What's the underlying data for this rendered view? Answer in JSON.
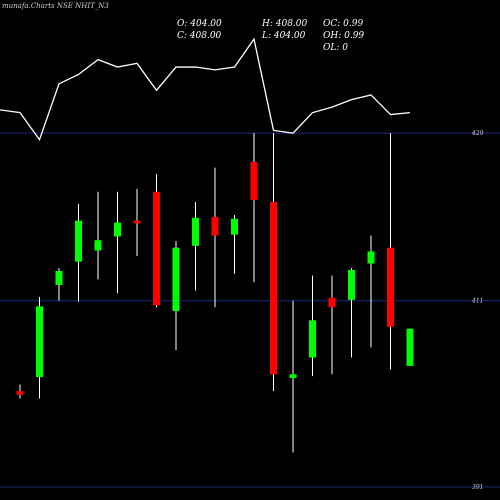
{
  "watermark": "munafa.Charts NSE NHIT_N3",
  "ohlc_info": {
    "open": "O: 404.00",
    "high": "H: 408.00",
    "oc": "OC: 0.99",
    "close": "C: 408.00",
    "low": "L: 404.00",
    "oh": "OH: 0.99",
    "ol": "OL: 0"
  },
  "colors": {
    "bull": "#00ff00",
    "bear": "#ff0000",
    "line": "#ffffff",
    "grid": "#1a2a7a"
  },
  "chart_data": {
    "type": "candlestick",
    "y_axis_labels": [
      "429",
      "411",
      "391"
    ],
    "y_axis_values": [
      429,
      411,
      391
    ],
    "ylim": [
      389.6,
      443.3
    ],
    "candles": [
      {
        "open": 401.3,
        "high": 402.0,
        "low": 400.5,
        "close": 400.9
      },
      {
        "open": 402.8,
        "high": 411.4,
        "low": 400.5,
        "close": 410.4
      },
      {
        "open": 412.7,
        "high": 414.5,
        "low": 411.0,
        "close": 414.2
      },
      {
        "open": 415.2,
        "high": 421.4,
        "low": 410.9,
        "close": 419.6
      },
      {
        "open": 416.4,
        "high": 422.7,
        "low": 413.3,
        "close": 417.5
      },
      {
        "open": 417.9,
        "high": 422.7,
        "low": 411.8,
        "close": 419.4
      },
      {
        "open": 419.6,
        "high": 423.0,
        "low": 415.8,
        "close": 419.3
      },
      {
        "open": 422.7,
        "high": 424.6,
        "low": 410.3,
        "close": 410.5
      },
      {
        "open": 409.9,
        "high": 417.4,
        "low": 405.7,
        "close": 416.7
      },
      {
        "open": 416.9,
        "high": 421.6,
        "low": 412.1,
        "close": 419.9
      },
      {
        "open": 420.0,
        "high": 425.3,
        "low": 410.3,
        "close": 418.0
      },
      {
        "open": 418.1,
        "high": 420.2,
        "low": 413.9,
        "close": 419.8
      },
      {
        "open": 425.9,
        "high": 429.0,
        "low": 413.0,
        "close": 421.8
      },
      {
        "open": 421.6,
        "high": 429.0,
        "low": 401.3,
        "close": 403.1
      },
      {
        "open": 402.7,
        "high": 411.0,
        "low": 394.7,
        "close": 403.1
      },
      {
        "open": 404.9,
        "high": 413.7,
        "low": 402.9,
        "close": 408.9
      },
      {
        "open": 411.3,
        "high": 413.7,
        "low": 403.1,
        "close": 410.3
      },
      {
        "open": 411.1,
        "high": 414.5,
        "low": 404.9,
        "close": 414.3
      },
      {
        "open": 415.0,
        "high": 418.0,
        "low": 406.0,
        "close": 416.3
      },
      {
        "open": 416.7,
        "high": 429.0,
        "low": 403.6,
        "close": 408.2
      },
      {
        "open": 404.0,
        "high": 408.0,
        "low": 404.0,
        "close": 408.0
      }
    ],
    "line_points": [
      431.2,
      428.3,
      434.3,
      435.3,
      436.9,
      436.1,
      436.5,
      433.6,
      436.1,
      436.1,
      435.8,
      436.1,
      439.1,
      429.3,
      429.0,
      431.2,
      431.8,
      432.6,
      433.1,
      431.0,
      431.2
    ]
  }
}
